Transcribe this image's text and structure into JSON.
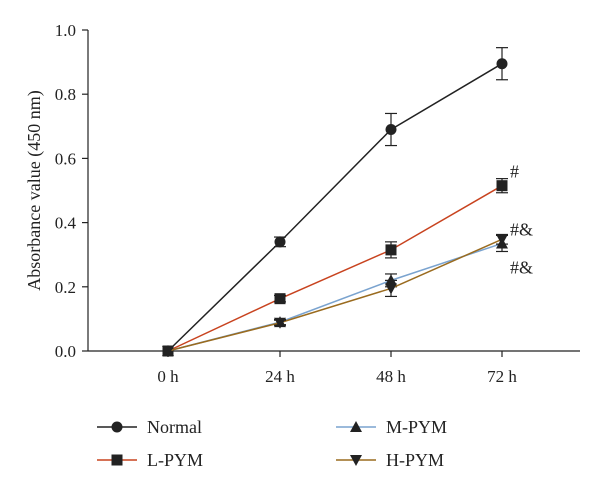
{
  "chart_data": {
    "type": "line",
    "title": "",
    "xlabel": "",
    "ylabel": "Absorbance value (450 nm)",
    "categories": [
      "0 h",
      "24 h",
      "48 h",
      "72 h"
    ],
    "ylim": [
      0,
      1.0
    ],
    "yticks": [
      "0.0",
      "0.2",
      "0.4",
      "0.6",
      "0.8",
      "1.0"
    ],
    "grid": false,
    "legend_position": "bottom",
    "series": [
      {
        "name": "Normal",
        "color": "#222222",
        "marker": "circle",
        "values": [
          0.0,
          0.34,
          0.69,
          0.895
        ],
        "errors": [
          0.0,
          0.015,
          0.05,
          0.05
        ]
      },
      {
        "name": "L-PYM",
        "color": "#c8431f",
        "marker": "square",
        "values": [
          0.0,
          0.163,
          0.315,
          0.515
        ],
        "errors": [
          0.0,
          0.01,
          0.025,
          0.022
        ]
      },
      {
        "name": "M-PYM",
        "color": "#7aa3cf",
        "marker": "triangle-up",
        "values": [
          0.0,
          0.09,
          0.22,
          0.335
        ],
        "errors": [
          0.0,
          0.008,
          0.02,
          0.025
        ]
      },
      {
        "name": "H-PYM",
        "color": "#9a6b1f",
        "marker": "triangle-down",
        "values": [
          0.0,
          0.088,
          0.195,
          0.348
        ],
        "errors": [
          0.0,
          0.008,
          0.025,
          0.015
        ]
      }
    ],
    "annotations": [
      {
        "text": "#",
        "series": "L-PYM",
        "category": "72 h"
      },
      {
        "text": "#&",
        "series": "H-PYM",
        "category": "72 h"
      },
      {
        "text": "#&",
        "series": "M-PYM",
        "category": "72 h"
      }
    ]
  }
}
